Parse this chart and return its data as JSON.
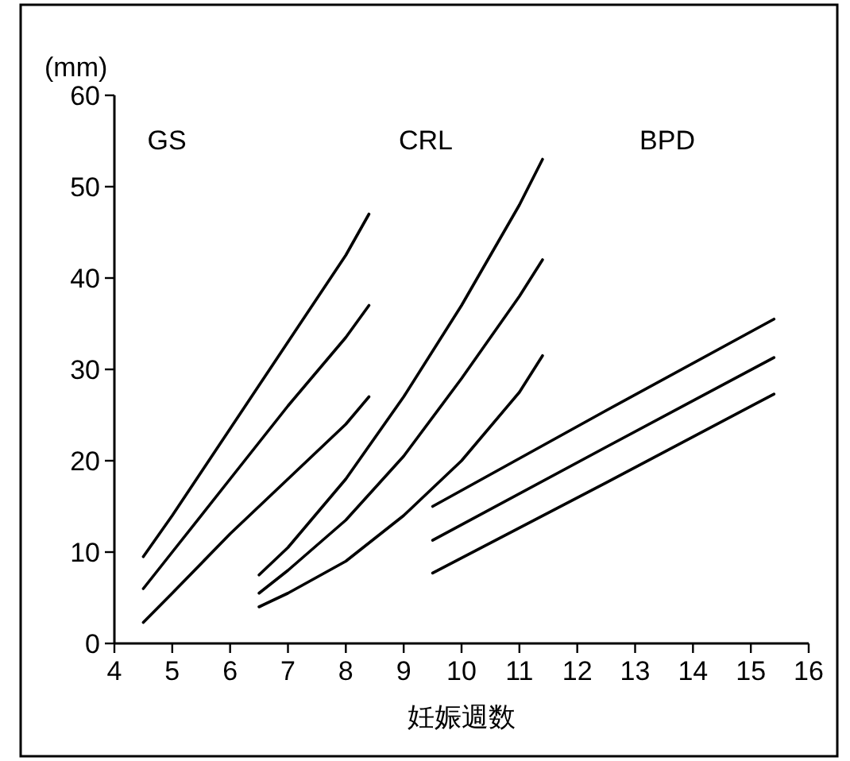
{
  "chart_data": {
    "type": "line",
    "ylabel": "(mm)",
    "xlabel": "妊娠週数",
    "xlim": [
      4,
      16
    ],
    "xticks": [
      4,
      5,
      6,
      7,
      8,
      9,
      10,
      11,
      12,
      13,
      14,
      15,
      16
    ],
    "ylim": [
      0,
      60
    ],
    "yticks": [
      0,
      10,
      20,
      30,
      40,
      50,
      60
    ],
    "grid": false,
    "marker": "none",
    "line_style": "solid",
    "annotations": [
      "GS",
      "CRL",
      "BPD"
    ],
    "series": [
      {
        "color": "#000000",
        "x": [
          4.5,
          5,
          6,
          7,
          8,
          8.4
        ],
        "values": [
          9.5,
          14,
          23.5,
          33,
          42.5,
          47
        ]
      },
      {
        "color": "#000000",
        "x": [
          4.5,
          5,
          6,
          7,
          8,
          8.4
        ],
        "values": [
          6,
          10,
          18,
          26,
          33.5,
          37
        ]
      },
      {
        "color": "#000000",
        "x": [
          4.5,
          5,
          6,
          7,
          8,
          8.4
        ],
        "values": [
          2.3,
          5.5,
          12,
          18,
          24,
          27
        ]
      },
      {
        "color": "#000000",
        "x": [
          6.5,
          7,
          8,
          9,
          10,
          11,
          11.4
        ],
        "values": [
          7.5,
          10.5,
          18,
          27,
          37,
          48,
          53
        ]
      },
      {
        "color": "#000000",
        "x": [
          6.5,
          7,
          8,
          9,
          10,
          11,
          11.4
        ],
        "values": [
          5.5,
          8,
          13.5,
          20.5,
          29,
          38,
          42
        ]
      },
      {
        "color": "#000000",
        "x": [
          6.5,
          7,
          8,
          9,
          10,
          11,
          11.4
        ],
        "values": [
          4,
          5.5,
          9,
          14,
          20,
          27.5,
          31.5
        ]
      },
      {
        "color": "#000000",
        "x": [
          9.5,
          12.5,
          15.4
        ],
        "values": [
          15,
          25.5,
          35.5
        ]
      },
      {
        "color": "#000000",
        "x": [
          9.5,
          12.5,
          15.4
        ],
        "values": [
          11.3,
          21.5,
          31.3
        ]
      },
      {
        "color": "#000000",
        "x": [
          9.5,
          12.5,
          15.4
        ],
        "values": [
          7.7,
          17.6,
          27.3
        ]
      }
    ]
  }
}
